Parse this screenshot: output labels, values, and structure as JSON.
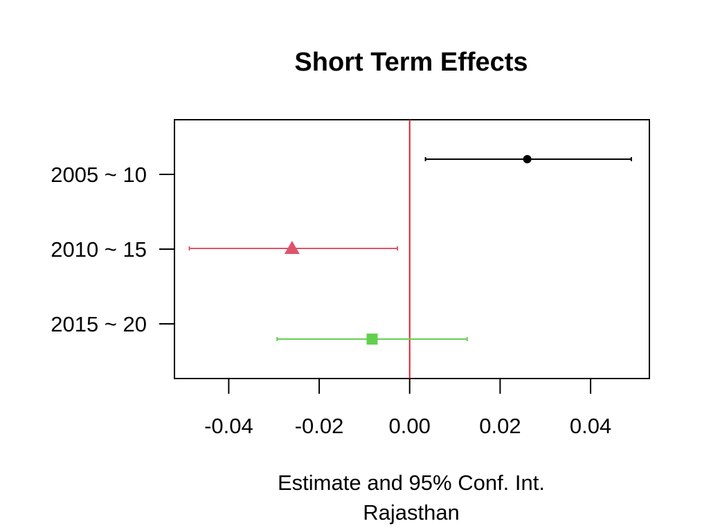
{
  "chart_data": {
    "type": "forest",
    "title": "Short Term Effects",
    "xlabel": "Estimate and 95% Conf. Int.",
    "subtitle": "Rajasthan",
    "ylabel": "",
    "xlim": [
      -0.052,
      0.053
    ],
    "xticks": [
      -0.04,
      -0.02,
      0.0,
      0.02,
      0.04
    ],
    "xtick_labels": [
      "-0.04",
      "-0.02",
      "0.00",
      "0.02",
      "0.04"
    ],
    "categories": [
      "2005 ~ 10",
      "2010 ~ 15",
      "2015 ~ 20"
    ],
    "reference_line": {
      "x": 0.0,
      "color": "#DF1F2F"
    },
    "series": [
      {
        "category": "2005 ~ 10",
        "estimate": 0.026,
        "lower": 0.0035,
        "upper": 0.049,
        "color": "#000000",
        "marker": "circle"
      },
      {
        "category": "2010 ~ 15",
        "estimate": -0.026,
        "lower": -0.0487,
        "upper": -0.0027,
        "color": "#DF536B",
        "marker": "triangle"
      },
      {
        "category": "2015 ~ 20",
        "estimate": -0.0083,
        "lower": -0.0293,
        "upper": 0.0127,
        "color": "#61D04F",
        "marker": "square"
      }
    ],
    "grid": false,
    "legend": "none"
  }
}
